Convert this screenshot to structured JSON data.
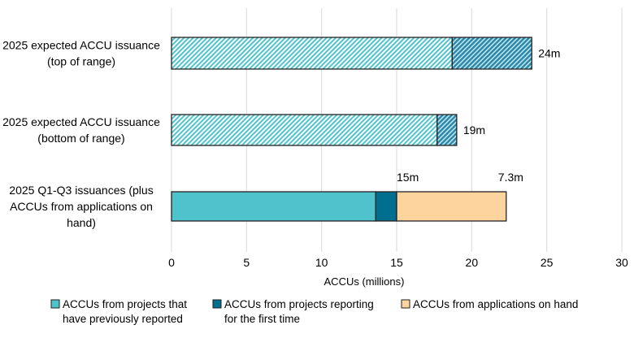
{
  "chart_data": {
    "type": "bar",
    "orientation": "horizontal",
    "stacked": true,
    "xlabel": "ACCUs (millions)",
    "xlim": [
      0,
      30
    ],
    "xticks": [
      0,
      5,
      10,
      15,
      20,
      25,
      30
    ],
    "grid": "vertical",
    "legend_position": "bottom",
    "categories": [
      [
        "2025 expected ACCU issuance",
        "(top of range)"
      ],
      [
        "2025 expected ACCU issuance",
        "(bottom of range)"
      ],
      [
        "2025 Q1-Q3 issuances (plus",
        "ACCUs from applications on",
        "hand)"
      ]
    ],
    "bars": [
      {
        "segments": [
          {
            "value": 18.7,
            "style": "hatch-light"
          },
          {
            "value": 5.3,
            "style": "hatch-dark"
          }
        ],
        "label": "24m"
      },
      {
        "segments": [
          {
            "value": 17.7,
            "style": "hatch-light"
          },
          {
            "value": 1.3,
            "style": "hatch-dark"
          }
        ],
        "label": "19m"
      },
      {
        "segments": [
          {
            "value": 13.6,
            "style": "prev"
          },
          {
            "value": 1.4,
            "style": "first"
          },
          {
            "value": 7.3,
            "style": "hand"
          }
        ],
        "labels": [
          "15m",
          "7.3m"
        ]
      }
    ],
    "series": [
      {
        "name": [
          "ACCUs from projects that",
          "have previously reported"
        ],
        "color": "#4fc3cc"
      },
      {
        "name": [
          "ACCUs from projects reporting",
          "for the first time"
        ],
        "color": "#006e8f"
      },
      {
        "name": [
          "ACCUs from applications on hand"
        ],
        "color": "#fdd49e"
      }
    ],
    "colors": {
      "hatch_light": "#4fc3cc",
      "hatch_dark": "#2a86a8",
      "grid": "#d9d9d9"
    }
  }
}
